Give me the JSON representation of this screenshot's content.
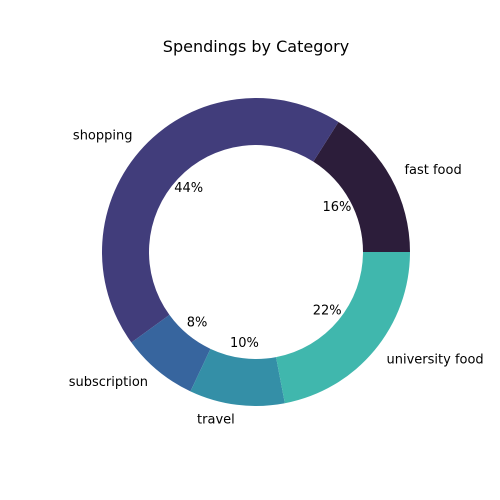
{
  "chart_data": {
    "type": "pie",
    "title": "Spendings by Category",
    "donut": true,
    "start_angle_deg": 0,
    "direction": "counterclockwise",
    "categories": [
      "fast food",
      "shopping",
      "subscription",
      "travel",
      "university food"
    ],
    "values": [
      16,
      44,
      8,
      10,
      22
    ],
    "percent_labels": [
      "16%",
      "44%",
      "8%",
      "10%",
      "22%"
    ],
    "colors": [
      "#2c1d3a",
      "#413d7b",
      "#37659e",
      "#348fa7",
      "#40b7ad"
    ]
  }
}
